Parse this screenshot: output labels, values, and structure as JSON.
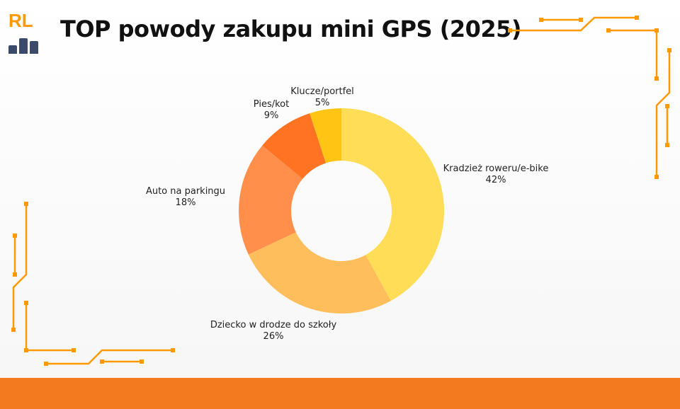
{
  "header": {
    "logo_text": "RL",
    "title": "TOP powody zakupu mini GPS (2025)"
  },
  "colors": {
    "accent": "#f47a20",
    "circuit": "#ff9900",
    "logo_bars": "#3b4a6b"
  },
  "chart_data": {
    "type": "pie",
    "donut": true,
    "title": "TOP powody zakupu mini GPS (2025)",
    "categories": [
      "Kradzież roweru/e-bike",
      "Dziecko w drodze do szkoły",
      "Auto na parkingu",
      "Pies/kot",
      "Klucze/portfel"
    ],
    "values": [
      42,
      26,
      18,
      9,
      5
    ],
    "labels": [
      "42%",
      "26%",
      "18%",
      "9%",
      "5%"
    ],
    "colors": [
      "#FFDD57",
      "#FFBE5C",
      "#FF8F4A",
      "#FF7322",
      "#FFC414"
    ],
    "legend": "none"
  }
}
